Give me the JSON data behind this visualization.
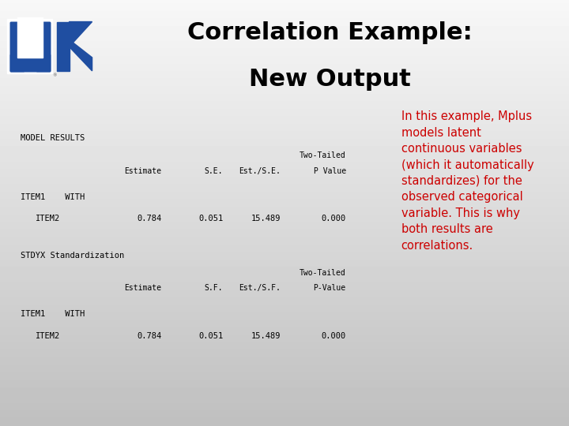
{
  "title_line1": "Correlation Example:",
  "title_line2": "New Output",
  "title_fontsize": 22,
  "title_color": "#000000",
  "slide_bg_top": "#f5f5f5",
  "slide_bg_bottom": "#c8c8c8",
  "box_bg": "#ffffff",
  "box_border": "#bbbbbb",
  "table1_header": "MODEL RESULTS",
  "table2_header": "STDYX Standardization",
  "col_headers1": [
    "Estimate",
    "S.E.",
    "Est./S.E.",
    "Two-Tailed\nP Value"
  ],
  "col_headers2": [
    "Estimate",
    "S.F.",
    "Est./S.F.",
    "Two-Tailed\nP-Value"
  ],
  "row1_label": "ITEM1    WITH",
  "row2_label": "   ITEM2",
  "row2_vals": [
    "0.784",
    "0.051",
    "15.489",
    "0.000"
  ],
  "annotation_text": "In this example, Mplus\nmodels latent\ncontinuous variables\n(which it automatically\nstandardizes) for the\nobserved categorical\nvariable. This is why\nboth results are\ncorrelations.",
  "annotation_color": "#cc0000",
  "annotation_fontsize": 10.5,
  "mono_fontsize": 7.5,
  "uk_blue": "#1F4EA1"
}
